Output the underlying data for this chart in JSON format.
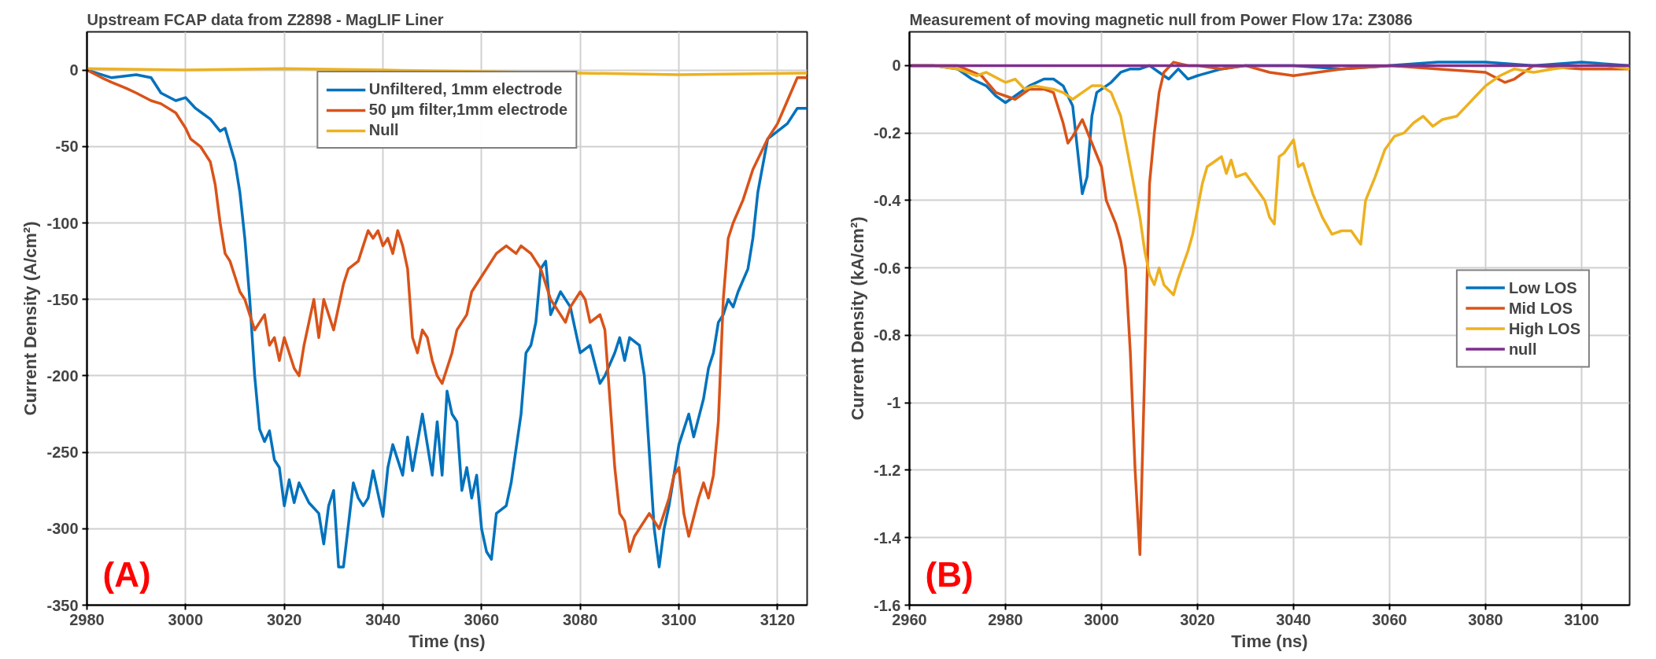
{
  "chart_data": [
    {
      "type": "line",
      "title": "Upstream FCAP data from Z2898 - MagLIF Liner",
      "xlabel": "Time (ns)",
      "ylabel": "Current Density (A/cm²)",
      "annotations": [
        "(A)"
      ],
      "xlim": [
        2980,
        3126
      ],
      "ylim": [
        -350,
        25
      ],
      "xticks": [
        2980,
        3000,
        3020,
        3040,
        3060,
        3080,
        3100,
        3120
      ],
      "yticks": [
        -350,
        -300,
        -250,
        -200,
        -150,
        -100,
        -50,
        0
      ],
      "grid": true,
      "legend": "top",
      "line_style": "solid",
      "marker": "none",
      "series": [
        {
          "name": "Unfiltered, 1mm electrode",
          "color": "#0072bd",
          "x": [
            2980,
            2985,
            2990,
            2993,
            2995,
            2998,
            3000,
            3002,
            3005,
            3007,
            3008,
            3010,
            3011,
            3012,
            3013,
            3014,
            3015,
            3016,
            3017,
            3018,
            3019,
            3020,
            3021,
            3022,
            3023,
            3025,
            3027,
            3028,
            3029,
            3030,
            3031,
            3032,
            3034,
            3035,
            3036,
            3037,
            3038,
            3040,
            3041,
            3042,
            3044,
            3045,
            3046,
            3048,
            3050,
            3051,
            3052,
            3053,
            3054,
            3055,
            3056,
            3057,
            3058,
            3059,
            3060,
            3061,
            3062,
            3063,
            3065,
            3066,
            3068,
            3069,
            3070,
            3071,
            3072,
            3073,
            3074,
            3076,
            3078,
            3079,
            3080,
            3082,
            3084,
            3085,
            3087,
            3088,
            3089,
            3090,
            3092,
            3093,
            3094,
            3095,
            3096,
            3097,
            3098,
            3099,
            3100,
            3101,
            3102,
            3103,
            3105,
            3106,
            3107,
            3108,
            3109,
            3110,
            3111,
            3112,
            3114,
            3115,
            3116,
            3118,
            3120,
            3122,
            3124,
            3126
          ],
          "values": [
            0,
            -5,
            -3,
            -5,
            -15,
            -20,
            -18,
            -25,
            -32,
            -40,
            -38,
            -60,
            -80,
            -110,
            -150,
            -200,
            -235,
            -243,
            -236,
            -255,
            -260,
            -285,
            -268,
            -283,
            -270,
            -283,
            -290,
            -310,
            -285,
            -275,
            -325,
            -325,
            -270,
            -280,
            -285,
            -280,
            -262,
            -292,
            -260,
            -245,
            -265,
            -240,
            -262,
            -225,
            -265,
            -230,
            -265,
            -210,
            -225,
            -230,
            -275,
            -260,
            -280,
            -265,
            -300,
            -315,
            -320,
            -290,
            -285,
            -270,
            -225,
            -185,
            -180,
            -165,
            -130,
            -125,
            -160,
            -145,
            -155,
            -170,
            -185,
            -180,
            -205,
            -200,
            -185,
            -175,
            -190,
            -175,
            -180,
            -200,
            -250,
            -300,
            -325,
            -300,
            -285,
            -265,
            -245,
            -235,
            -225,
            -240,
            -215,
            -195,
            -185,
            -165,
            -160,
            -150,
            -155,
            -145,
            -130,
            -110,
            -80,
            -45,
            -40,
            -35,
            -25,
            -25
          ]
        },
        {
          "name": "50 μm filter,1mm electrode",
          "color": "#d95319",
          "x": [
            2980,
            2983,
            2985,
            2988,
            2990,
            2993,
            2995,
            2998,
            3000,
            3001,
            3003,
            3005,
            3006,
            3007,
            3008,
            3009,
            3010,
            3011,
            3012,
            3013,
            3014,
            3015,
            3016,
            3017,
            3018,
            3019,
            3020,
            3022,
            3023,
            3024,
            3026,
            3027,
            3028,
            3030,
            3032,
            3033,
            3035,
            3036,
            3037,
            3038,
            3039,
            3040,
            3041,
            3042,
            3043,
            3044,
            3045,
            3046,
            3047,
            3048,
            3049,
            3050,
            3051,
            3052,
            3053,
            3054,
            3055,
            3057,
            3058,
            3060,
            3062,
            3063,
            3065,
            3067,
            3068,
            3070,
            3072,
            3074,
            3076,
            3077,
            3078,
            3080,
            3081,
            3082,
            3084,
            3085,
            3086,
            3087,
            3088,
            3089,
            3090,
            3091,
            3092,
            3094,
            3095,
            3096,
            3097,
            3098,
            3099,
            3100,
            3101,
            3102,
            3104,
            3105,
            3106,
            3107,
            3108,
            3109,
            3110,
            3111,
            3113,
            3115,
            3118,
            3120,
            3122,
            3124,
            3126
          ],
          "values": [
            0,
            -5,
            -8,
            -12,
            -15,
            -20,
            -22,
            -28,
            -38,
            -45,
            -50,
            -60,
            -75,
            -100,
            -120,
            -125,
            -135,
            -145,
            -150,
            -160,
            -170,
            -165,
            -160,
            -180,
            -175,
            -190,
            -175,
            -195,
            -200,
            -180,
            -150,
            -175,
            -150,
            -170,
            -140,
            -130,
            -125,
            -115,
            -105,
            -110,
            -105,
            -115,
            -110,
            -120,
            -105,
            -115,
            -130,
            -175,
            -185,
            -170,
            -175,
            -190,
            -200,
            -205,
            -195,
            -185,
            -170,
            -160,
            -145,
            -135,
            -125,
            -120,
            -115,
            -120,
            -115,
            -120,
            -130,
            -150,
            -160,
            -165,
            -155,
            -145,
            -150,
            -165,
            -160,
            -170,
            -215,
            -260,
            -290,
            -295,
            -315,
            -305,
            -300,
            -290,
            -295,
            -300,
            -290,
            -280,
            -265,
            -260,
            -290,
            -305,
            -280,
            -270,
            -280,
            -265,
            -230,
            -150,
            -110,
            -100,
            -85,
            -65,
            -45,
            -35,
            -20,
            -5,
            -5
          ]
        },
        {
          "name": "Null",
          "color": "#edb120",
          "x": [
            2980,
            3000,
            3020,
            3040,
            3060,
            3080,
            3100,
            3126
          ],
          "values": [
            1,
            0,
            1,
            0,
            -1,
            -2,
            -3,
            -2
          ]
        }
      ]
    },
    {
      "type": "line",
      "title": "Measurement of moving magnetic null from Power Flow 17a: Z3086",
      "xlabel": "Time (ns)",
      "ylabel": "Current Density (kA/cm²)",
      "annotations": [
        "(B)"
      ],
      "xlim": [
        2960,
        3110
      ],
      "ylim": [
        -1.6,
        0.1
      ],
      "xticks": [
        2960,
        2980,
        3000,
        3020,
        3040,
        3060,
        3080,
        3100
      ],
      "yticks": [
        -1.6,
        -1.4,
        -1.2,
        -1,
        -0.8,
        -0.6,
        -0.4,
        -0.2,
        0
      ],
      "grid": true,
      "legend": "right",
      "line_style": "solid",
      "marker": "none",
      "series": [
        {
          "name": "Low LOS",
          "color": "#0072bd",
          "x": [
            2960,
            2965,
            2970,
            2973,
            2976,
            2978,
            2980,
            2982,
            2985,
            2988,
            2990,
            2992,
            2994,
            2995,
            2996,
            2997,
            2998,
            2999,
            3000,
            3002,
            3004,
            3006,
            3008,
            3010,
            3012,
            3014,
            3016,
            3018,
            3020,
            3025,
            3030,
            3040,
            3050,
            3060,
            3070,
            3080,
            3090,
            3100,
            3110
          ],
          "values": [
            0,
            0,
            -0.01,
            -0.04,
            -0.06,
            -0.09,
            -0.11,
            -0.09,
            -0.06,
            -0.04,
            -0.04,
            -0.06,
            -0.12,
            -0.25,
            -0.38,
            -0.33,
            -0.15,
            -0.08,
            -0.07,
            -0.05,
            -0.02,
            -0.01,
            -0.01,
            0,
            -0.02,
            -0.04,
            -0.01,
            -0.04,
            -0.03,
            -0.01,
            0,
            0,
            -0.01,
            0,
            0.01,
            0.01,
            0,
            0.01,
            0
          ]
        },
        {
          "name": "Mid LOS",
          "color": "#d95319",
          "x": [
            2960,
            2970,
            2975,
            2978,
            2980,
            2982,
            2985,
            2988,
            2990,
            2992,
            2993,
            2994,
            2996,
            2998,
            3000,
            3001,
            3003,
            3004,
            3005,
            3006,
            3007,
            3008,
            3009,
            3010,
            3011,
            3012,
            3013,
            3015,
            3018,
            3020,
            3025,
            3030,
            3035,
            3040,
            3050,
            3060,
            3070,
            3080,
            3084,
            3086,
            3090,
            3100,
            3110
          ],
          "values": [
            0,
            0,
            -0.03,
            -0.08,
            -0.09,
            -0.1,
            -0.07,
            -0.07,
            -0.08,
            -0.17,
            -0.23,
            -0.21,
            -0.16,
            -0.23,
            -0.3,
            -0.4,
            -0.47,
            -0.52,
            -0.6,
            -0.85,
            -1.2,
            -1.45,
            -0.9,
            -0.35,
            -0.2,
            -0.08,
            -0.02,
            0.01,
            0,
            0,
            -0.01,
            0,
            -0.02,
            -0.03,
            -0.01,
            0,
            -0.01,
            -0.02,
            -0.05,
            -0.04,
            0,
            -0.01,
            -0.01
          ]
        },
        {
          "name": "High LOS",
          "color": "#edb120",
          "x": [
            2960,
            2965,
            2970,
            2974,
            2976,
            2980,
            2982,
            2984,
            2986,
            2990,
            2992,
            2994,
            2996,
            2998,
            3000,
            3002,
            3004,
            3006,
            3008,
            3009,
            3010,
            3011,
            3012,
            3013,
            3015,
            3016,
            3018,
            3019,
            3021,
            3022,
            3024,
            3025,
            3026,
            3027,
            3028,
            3030,
            3032,
            3034,
            3035,
            3036,
            3037,
            3038,
            3040,
            3041,
            3042,
            3044,
            3046,
            3048,
            3050,
            3052,
            3054,
            3055,
            3057,
            3059,
            3061,
            3063,
            3065,
            3067,
            3069,
            3071,
            3074,
            3076,
            3078,
            3080,
            3083,
            3086,
            3090,
            3094,
            3100,
            3105,
            3110
          ],
          "values": [
            0,
            0,
            -0.01,
            -0.03,
            -0.02,
            -0.05,
            -0.04,
            -0.07,
            -0.06,
            -0.07,
            -0.08,
            -0.1,
            -0.08,
            -0.06,
            -0.06,
            -0.08,
            -0.15,
            -0.3,
            -0.45,
            -0.55,
            -0.62,
            -0.65,
            -0.6,
            -0.65,
            -0.68,
            -0.63,
            -0.55,
            -0.5,
            -0.35,
            -0.3,
            -0.28,
            -0.27,
            -0.32,
            -0.28,
            -0.33,
            -0.32,
            -0.36,
            -0.4,
            -0.45,
            -0.47,
            -0.27,
            -0.26,
            -0.22,
            -0.3,
            -0.29,
            -0.38,
            -0.45,
            -0.5,
            -0.49,
            -0.49,
            -0.53,
            -0.4,
            -0.33,
            -0.25,
            -0.21,
            -0.2,
            -0.17,
            -0.15,
            -0.18,
            -0.16,
            -0.15,
            -0.12,
            -0.09,
            -0.06,
            -0.03,
            -0.01,
            -0.02,
            -0.01,
            0,
            0,
            -0.01
          ]
        },
        {
          "name": "null",
          "color": "#7e2f8e",
          "x": [
            2960,
            2990,
            3020,
            3050,
            3080,
            3110
          ],
          "values": [
            0,
            0,
            0,
            0,
            0,
            0
          ]
        }
      ]
    }
  ]
}
